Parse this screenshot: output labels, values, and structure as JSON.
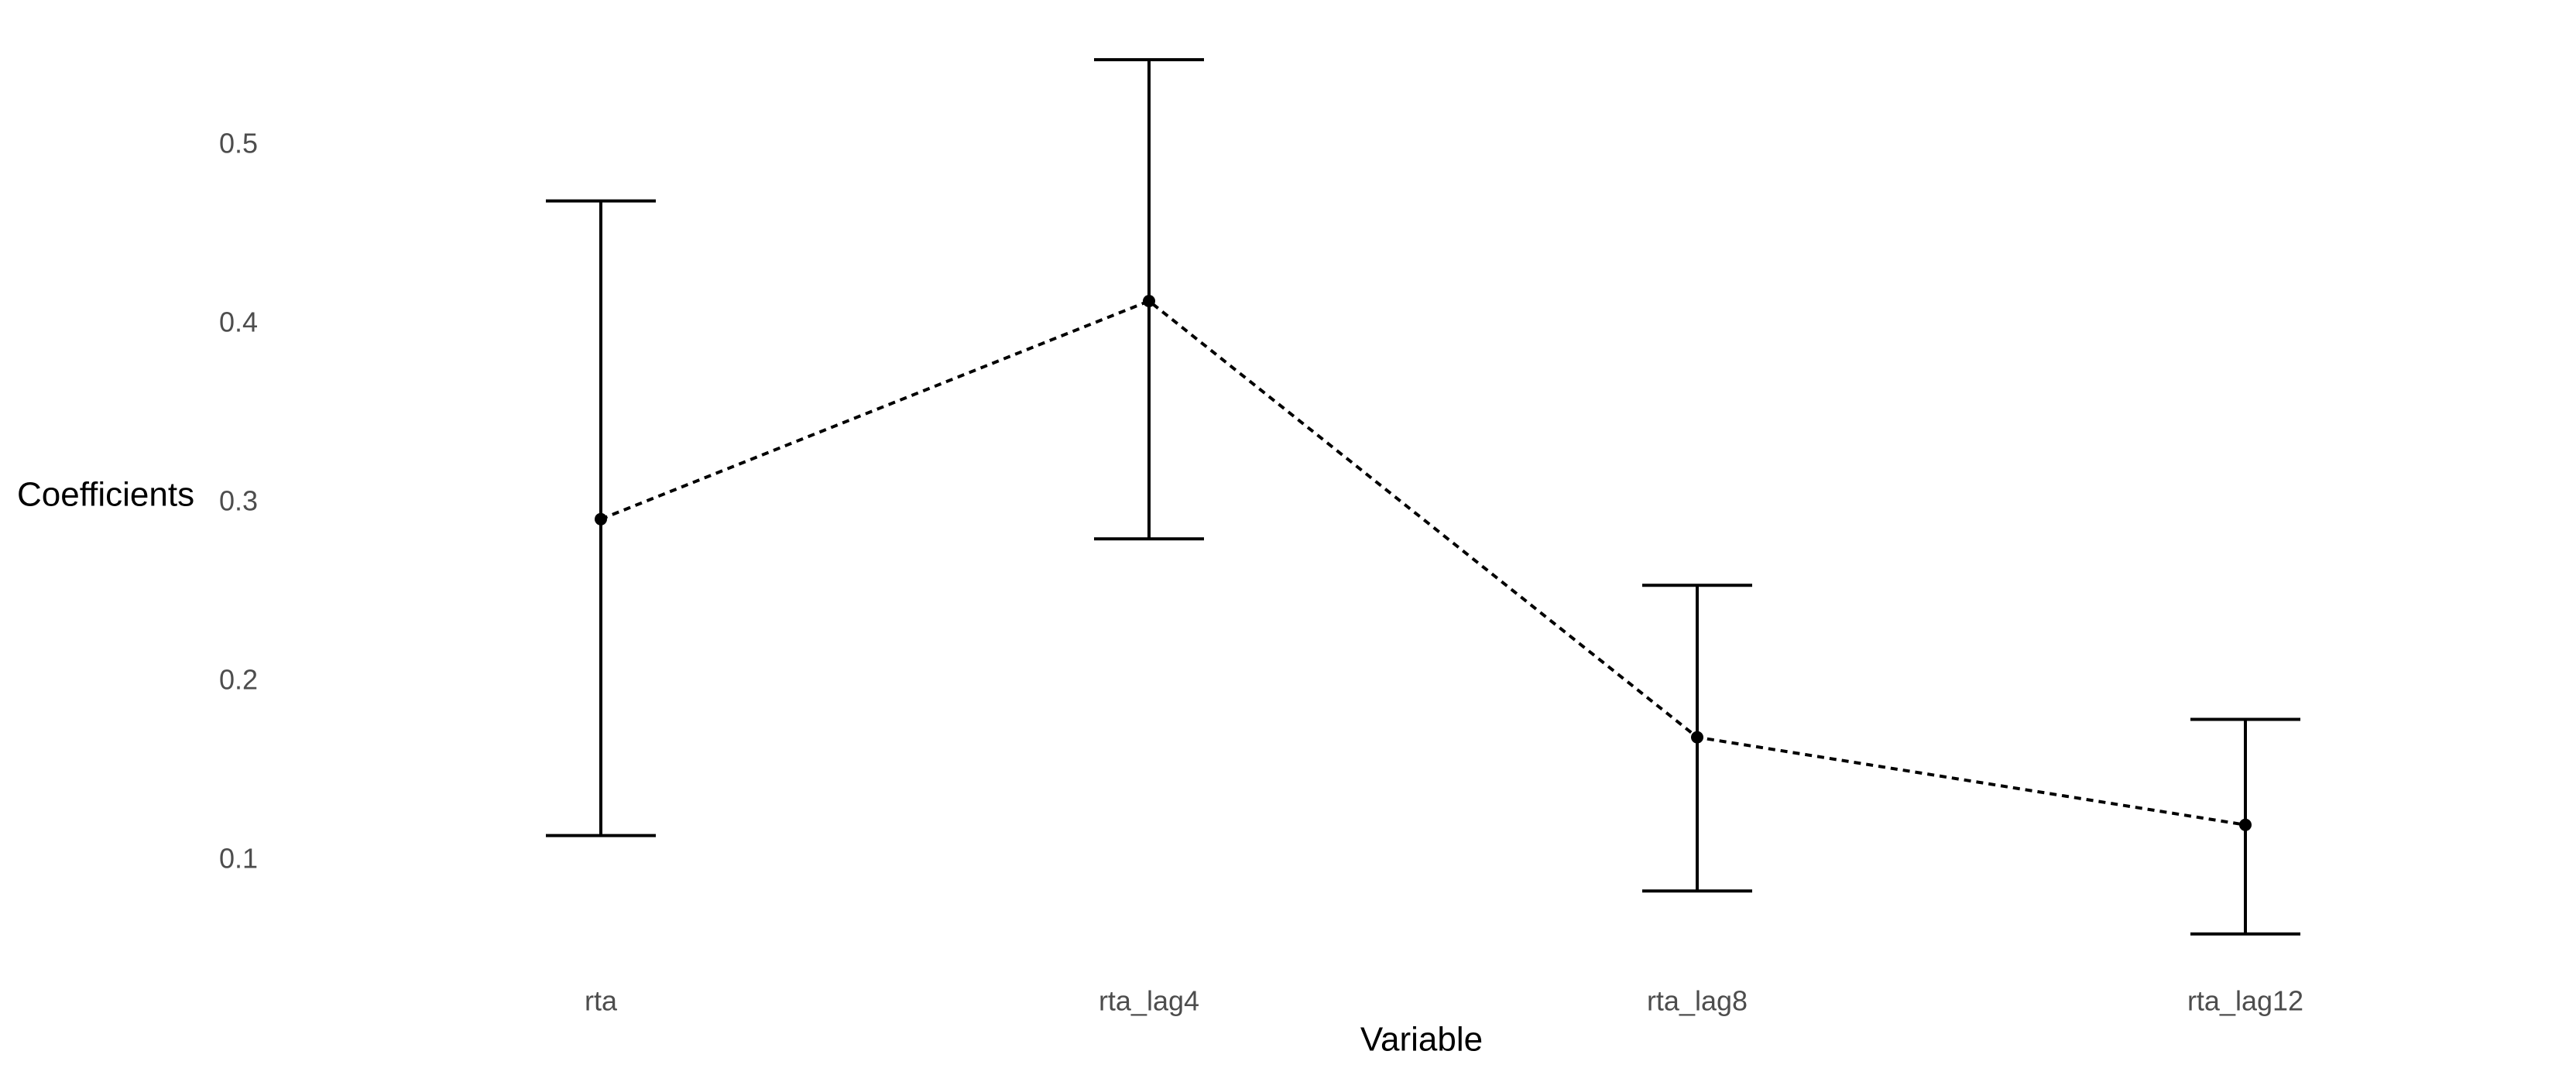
{
  "chart_data": {
    "type": "errorbar-line",
    "title": "",
    "xlabel": "Variable",
    "ylabel": "Coefficients",
    "categories": [
      "rta",
      "rta_lag4",
      "rta_lag8",
      "rta_lag12"
    ],
    "series": [
      {
        "values": [
          0.291,
          0.413,
          0.169,
          0.12
        ],
        "ci_low": [
          0.114,
          0.28,
          0.083,
          0.059
        ],
        "ci_high": [
          0.469,
          0.548,
          0.254,
          0.179
        ]
      }
    ],
    "y_ticks": [
      0.1,
      0.2,
      0.3,
      0.4,
      0.5
    ],
    "ylim": [
      0.04,
      0.56
    ],
    "grid": false,
    "legend": "none",
    "colors": {
      "line": "#000000",
      "errorbar": "#000000",
      "point": "#000000",
      "tick_text": "#4d4d4d"
    }
  }
}
